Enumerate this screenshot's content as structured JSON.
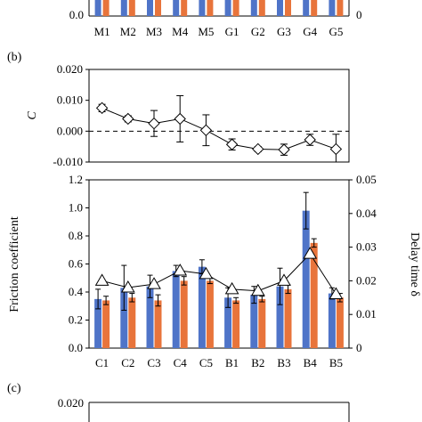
{
  "colors": {
    "blue": "#4f74c8",
    "orange": "#e8743b",
    "ink": "#000000",
    "marker_fill": "#ffffff"
  },
  "panels": {
    "a_partial": {
      "label": "",
      "y_tick_left": "0.0",
      "y_tick_right": "0",
      "categories": [
        "M1",
        "M2",
        "M3",
        "M4",
        "M5",
        "G1",
        "G2",
        "G3",
        "G4",
        "G5"
      ]
    },
    "b": {
      "label": "(b)",
      "ylabel": "C"
    },
    "b_lower": {
      "ylabel_left": "Friction coefficient",
      "ylabel_right": "Delay time δ"
    },
    "c": {
      "label": "(c)",
      "y_tick_top": "0.020"
    }
  },
  "chart_data": [
    {
      "type": "line",
      "panel": "b",
      "categories": [
        "C1",
        "C2",
        "C3",
        "C4",
        "C5",
        "B1",
        "B2",
        "B3",
        "B4",
        "B5"
      ],
      "values": [
        0.0075,
        0.004,
        0.0025,
        0.004,
        0.0003,
        -0.0043,
        -0.0058,
        -0.006,
        -0.0028,
        -0.0058
      ],
      "errors": [
        0.0012,
        0.001,
        0.0042,
        0.0075,
        0.005,
        0.0018,
        0.0008,
        0.0018,
        0.0018,
        0.0048
      ],
      "ylabel": "C",
      "ylim": [
        -0.01,
        0.02
      ],
      "yticks": [
        "0.020",
        "0.010",
        "0.000",
        "-0.010"
      ],
      "zero_line": "dashed",
      "marker": "diamond"
    },
    {
      "type": "bar",
      "panel": "b_lower",
      "categories": [
        "C1",
        "C2",
        "C3",
        "C4",
        "C5",
        "B1",
        "B2",
        "B3",
        "B4",
        "B5"
      ],
      "series": [
        {
          "values": [
            0.35,
            0.43,
            0.44,
            0.55,
            0.58,
            0.36,
            0.38,
            0.44,
            0.98,
            0.39
          ],
          "errors": [
            0.07,
            0.16,
            0.08,
            0.04,
            0.05,
            0.07,
            0.06,
            0.13,
            0.13,
            0.04
          ]
        },
        {
          "values": [
            0.34,
            0.36,
            0.34,
            0.48,
            0.48,
            0.34,
            0.35,
            0.42,
            0.75,
            0.36
          ],
          "errors": [
            0.03,
            0.03,
            0.04,
            0.03,
            0.02,
            0.02,
            0.02,
            0.03,
            0.03,
            0.03
          ]
        }
      ],
      "line_series": {
        "values": [
          0.02,
          0.018,
          0.019,
          0.023,
          0.022,
          0.0175,
          0.017,
          0.02,
          0.028,
          0.016
        ],
        "marker": "triangle",
        "axis": "right"
      },
      "ylabel": "Friction coefficient",
      "ylim": [
        0,
        1.2
      ],
      "yticks": [
        "0.0",
        "0.2",
        "0.4",
        "0.6",
        "0.8",
        "1.0",
        "1.2"
      ],
      "ylabel_right": "Delay time δ",
      "ylim_right": [
        0,
        0.05
      ],
      "yticks_right": [
        "0",
        "0.01",
        "0.02",
        "0.03",
        "0.04",
        "0.05"
      ]
    }
  ]
}
